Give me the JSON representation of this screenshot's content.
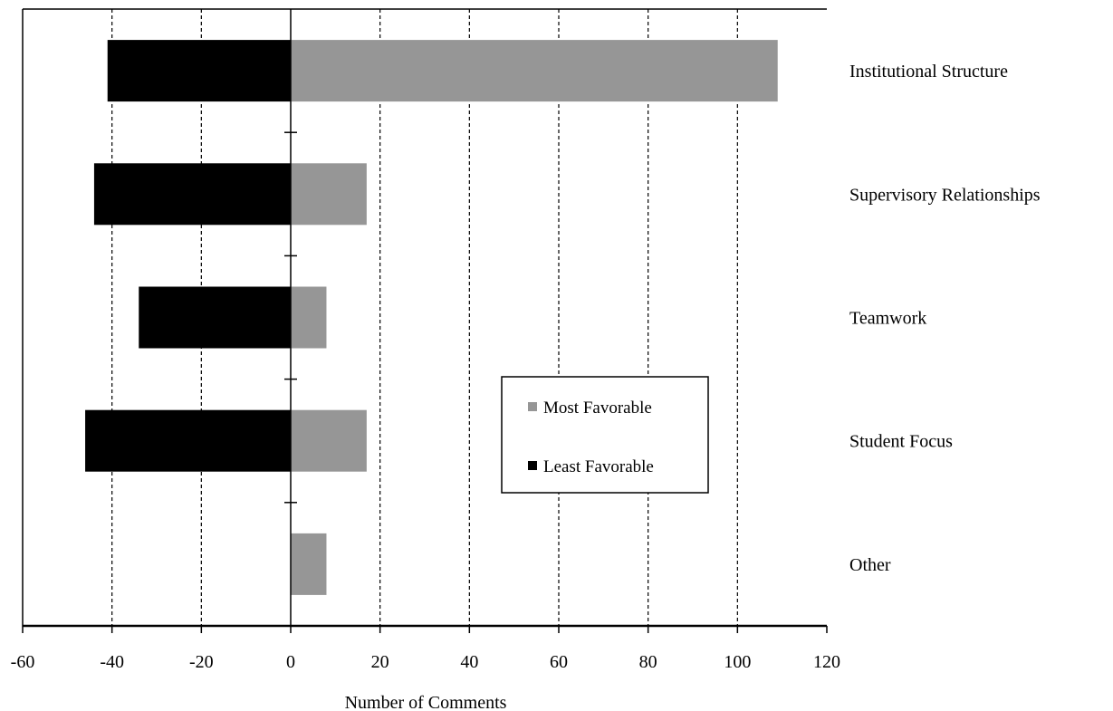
{
  "chart_data": {
    "type": "bar",
    "orientation": "horizontal",
    "stacked": false,
    "categories": [
      "Institutional Structure",
      "Supervisory Relationships",
      "Teamwork",
      "Student Focus",
      "Other"
    ],
    "series": [
      {
        "name": "Most Favorable",
        "values": [
          109,
          17,
          8,
          17,
          8
        ],
        "color": "#969696"
      },
      {
        "name": "Least Favorable",
        "values": [
          -41,
          -44,
          -34,
          -46,
          0
        ],
        "color": "#000000"
      }
    ],
    "xlabel": "Number of Comments",
    "ylabel": "",
    "title": "",
    "xlim": [
      -60,
      120
    ],
    "xticks": [
      -60,
      -40,
      -20,
      0,
      20,
      40,
      60,
      80,
      100,
      120
    ],
    "xtick_labels": [
      "-60",
      "-40",
      "-20",
      "0",
      "20",
      "40",
      "60",
      "80",
      "100",
      "120"
    ],
    "grid": "vertical dashed",
    "legend_position": "lower-right inside"
  }
}
